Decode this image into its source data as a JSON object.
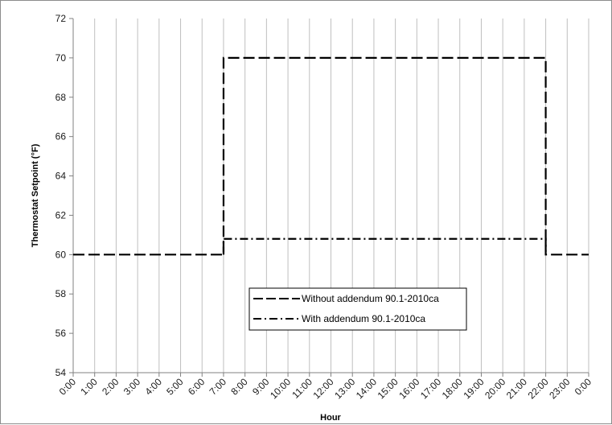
{
  "chart_data": {
    "type": "line",
    "title": "",
    "xlabel": "Hour",
    "ylabel": "Thermostat Setpoint (°F)",
    "ylim": [
      54,
      72
    ],
    "yticks": [
      54,
      56,
      58,
      60,
      62,
      64,
      66,
      68,
      70,
      72
    ],
    "categories": [
      "0:00",
      "1:00",
      "2:00",
      "3:00",
      "4:00",
      "5:00",
      "6:00",
      "7:00",
      "8:00",
      "9:00",
      "10:00",
      "11:00",
      "12:00",
      "13:00",
      "14:00",
      "15:00",
      "16:00",
      "17:00",
      "18:00",
      "19:00",
      "20:00",
      "21:00",
      "22:00",
      "23:00",
      "0:00"
    ],
    "grid": "vertical",
    "legend_position": "bottom-center",
    "series": [
      {
        "name": "Without addendum 90.1-2010ca",
        "style": "long-dash",
        "x": [
          0,
          7,
          7,
          22,
          22,
          24
        ],
        "y": [
          60,
          60,
          70,
          70,
          60,
          60
        ]
      },
      {
        "name": "With addendum 90.1-2010ca",
        "style": "dash-dot",
        "x": [
          7,
          7,
          22,
          22
        ],
        "y": [
          60,
          60.8,
          60.8,
          60
        ]
      }
    ]
  }
}
